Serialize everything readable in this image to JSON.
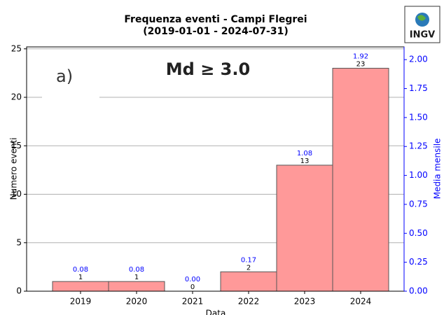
{
  "chart_data": {
    "type": "bar",
    "title": "Frequenza eventi - Campi Flegrei",
    "subtitle": "(2019-01-01 - 2024-07-31)",
    "xlabel": "Data",
    "ylabel": "Numero eventi",
    "y2label": "Media mensile",
    "annotations": [
      "a)",
      "Md ≥ 3.0"
    ],
    "logo": "INGV",
    "categories": [
      "2019",
      "2020",
      "2021",
      "2022",
      "2023",
      "2024"
    ],
    "series": [
      {
        "color": "#ff9999",
        "values": [
          1,
          1,
          0,
          2,
          13,
          23
        ]
      },
      {
        "axis": "y2",
        "color": "#0000ff",
        "values": [
          0.08,
          0.08,
          0,
          0.17,
          1.08,
          1.92
        ],
        "value_labels": [
          "0.08",
          "0.08",
          "0.00",
          "0.17",
          "1.08",
          "1.92"
        ]
      }
    ],
    "ylim": [
      0,
      25.2
    ],
    "yticks": [
      0,
      5,
      10,
      15,
      20,
      25
    ],
    "y2lim": [
      0,
      2.11
    ],
    "y2ticks": [
      {
        "value": 0,
        "label": "0.00"
      },
      {
        "value": 0.25,
        "label": "0.25"
      },
      {
        "value": 0.5,
        "label": "0.50"
      },
      {
        "value": 0.75,
        "label": "0.75"
      },
      {
        "value": 1,
        "label": "1.00"
      },
      {
        "value": 1.25,
        "label": "1.25"
      },
      {
        "value": 1.5,
        "label": "1.50"
      },
      {
        "value": 1.75,
        "label": "1.75"
      },
      {
        "value": 2,
        "label": "2.00"
      }
    ],
    "grid": true
  }
}
